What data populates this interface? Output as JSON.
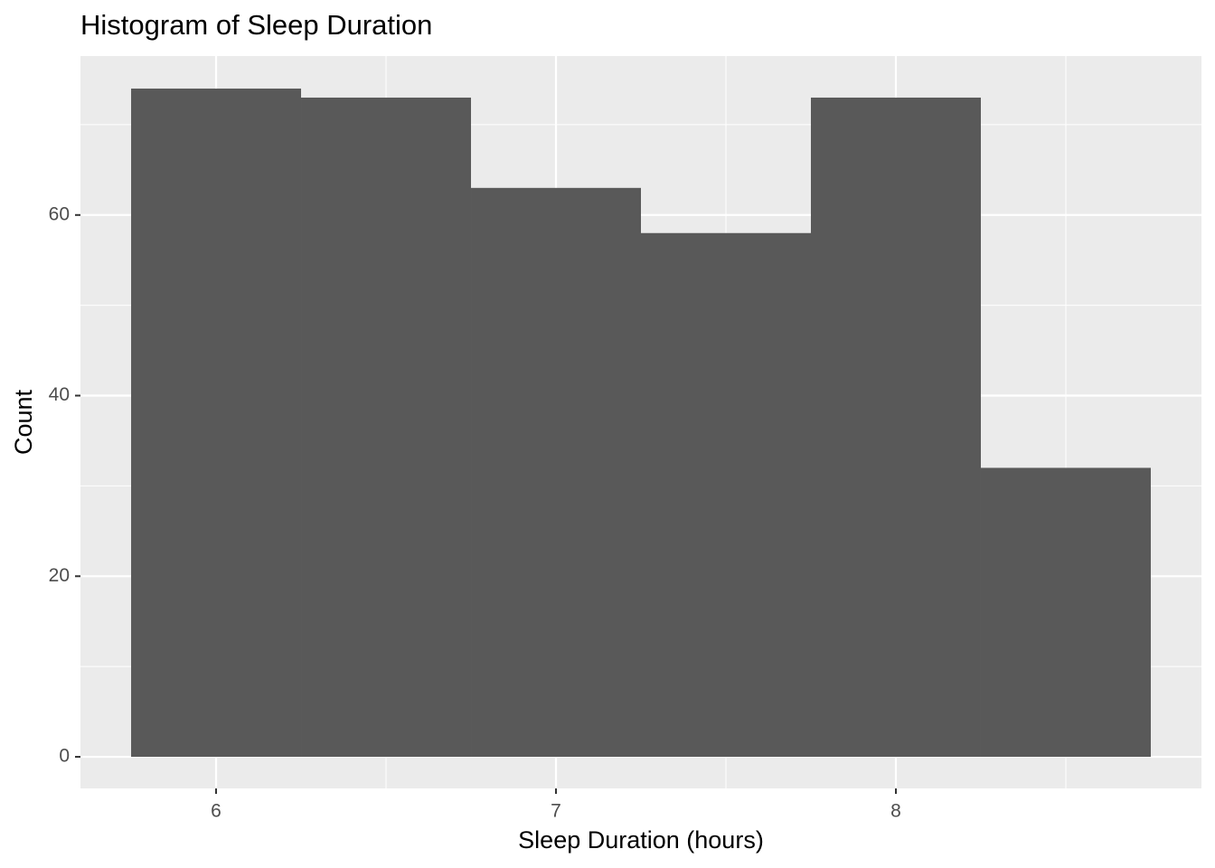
{
  "chart_data": {
    "type": "histogram",
    "title": "Histogram of Sleep Duration",
    "x_label": "Sleep Duration (hours)",
    "y_label": "Count",
    "bins": [
      5.75,
      6.25,
      6.75,
      7.25,
      7.75,
      8.25,
      8.75
    ],
    "values": [
      74,
      73,
      63,
      58,
      73,
      32
    ],
    "color": "#595959",
    "xlim": [
      5.601,
      8.899
    ],
    "ylim": [
      -3.5,
      77.6
    ],
    "xticks": [
      6,
      7,
      8
    ],
    "yticks": [
      0,
      20,
      40,
      60
    ],
    "xminor": [
      6.5,
      7.5,
      8.5
    ],
    "yminor": [
      10,
      30,
      50,
      70
    ],
    "grid": true
  }
}
